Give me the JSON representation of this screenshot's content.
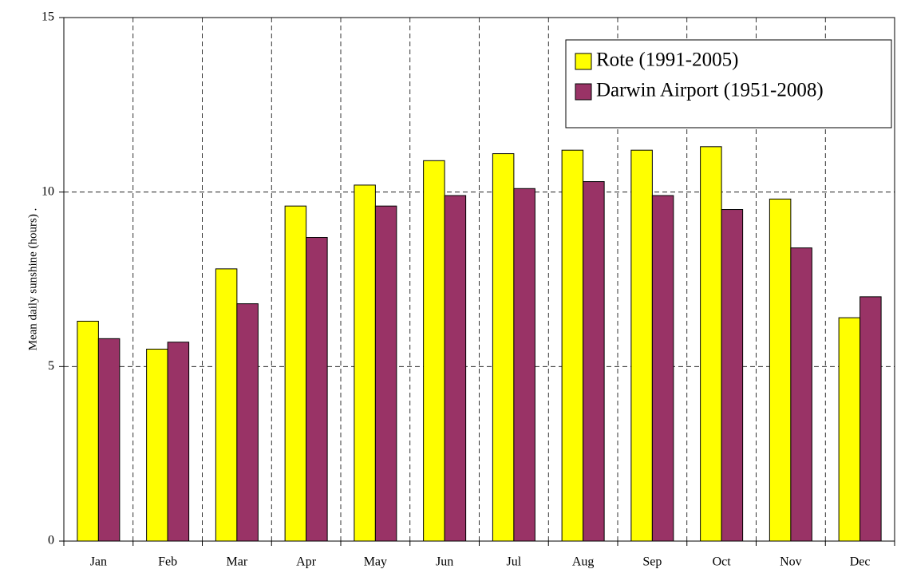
{
  "chart_data": {
    "type": "bar",
    "y_label": "Mean daily sunshine (hours) .",
    "categories": [
      "Jan",
      "Feb",
      "Mar",
      "Apr",
      "May",
      "Jun",
      "Jul",
      "Aug",
      "Sep",
      "Oct",
      "Nov",
      "Dec"
    ],
    "series": [
      {
        "name": "Rote (1991-2005)",
        "color": "#ffff00",
        "values": [
          6.3,
          5.5,
          7.8,
          9.6,
          10.2,
          10.9,
          11.1,
          11.2,
          11.2,
          11.3,
          9.8,
          6.4
        ]
      },
      {
        "name": "Darwin Airport (1951-2008)",
        "color": "#993366",
        "values": [
          5.8,
          5.7,
          6.8,
          8.7,
          9.6,
          9.9,
          10.1,
          10.3,
          9.9,
          9.5,
          8.4,
          7.0
        ]
      }
    ],
    "ylim": [
      0,
      15
    ],
    "yticks": [
      0,
      5,
      10,
      15
    ],
    "grid": true,
    "legend_position": "upper right"
  }
}
